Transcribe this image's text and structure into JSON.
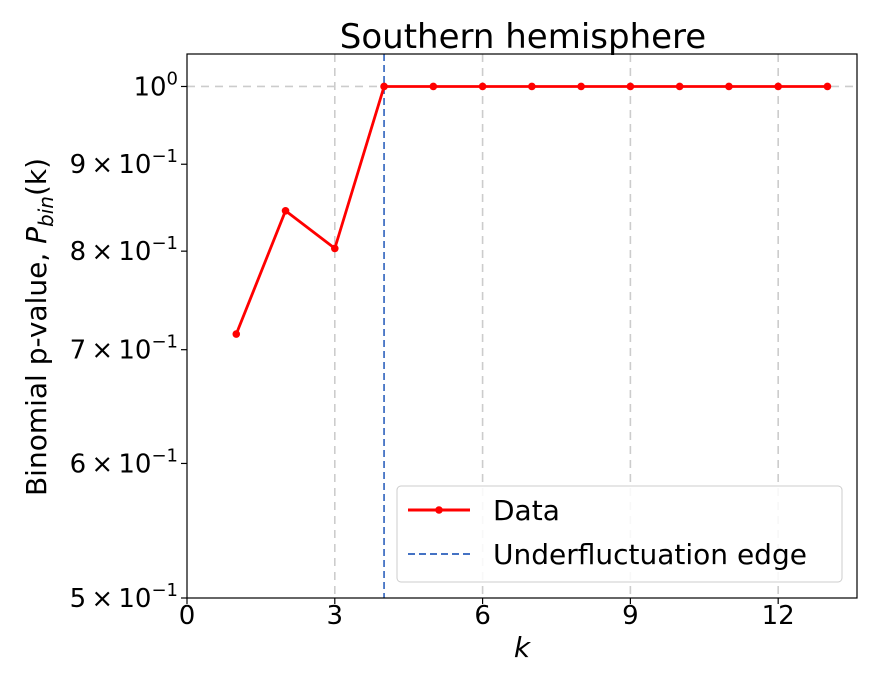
{
  "chart_data": {
    "type": "line",
    "title": "Southern hemisphere",
    "xlabel": "k",
    "ylabel_prefix": "Binomial p-value, ",
    "ylabel_symbol": "P",
    "ylabel_subscript": "bin",
    "ylabel_suffix": "(k)",
    "xlim": [
      0,
      13.6
    ],
    "ylim": [
      0.5,
      1.045
    ],
    "y_scale": "log",
    "grid": "x-major and y at 1.0, dashed light gray",
    "legend_position": "lower-right",
    "x_ticks": [
      0,
      3,
      6,
      9,
      12
    ],
    "x_tick_labels": [
      "0",
      "3",
      "6",
      "9",
      "12"
    ],
    "y_ticks": [
      {
        "value": 1.0,
        "base": "10",
        "exp": "0"
      },
      {
        "value": 0.9,
        "mant": "9",
        "times": "×",
        "base": "10",
        "exp": "−1"
      },
      {
        "value": 0.8,
        "mant": "8",
        "times": "×",
        "base": "10",
        "exp": "−1"
      },
      {
        "value": 0.7,
        "mant": "7",
        "times": "×",
        "base": "10",
        "exp": "−1"
      },
      {
        "value": 0.6,
        "mant": "6",
        "times": "×",
        "base": "10",
        "exp": "−1"
      },
      {
        "value": 0.5,
        "mant": "5",
        "times": "×",
        "base": "10",
        "exp": "−1"
      }
    ],
    "series": [
      {
        "name": "Data",
        "color": "#ff0000",
        "x": [
          1,
          2,
          3,
          4,
          5,
          6,
          7,
          8,
          9,
          10,
          11,
          12,
          13
        ],
        "y": [
          0.715,
          0.845,
          0.803,
          1.0,
          1.0,
          1.0,
          1.0,
          1.0,
          1.0,
          1.0,
          1.0,
          1.0,
          1.0
        ]
      }
    ],
    "vertical_lines": [
      {
        "name": "Underfluctuation edge",
        "x": 4,
        "color": "#4472c4",
        "style": "dashed"
      }
    ]
  }
}
